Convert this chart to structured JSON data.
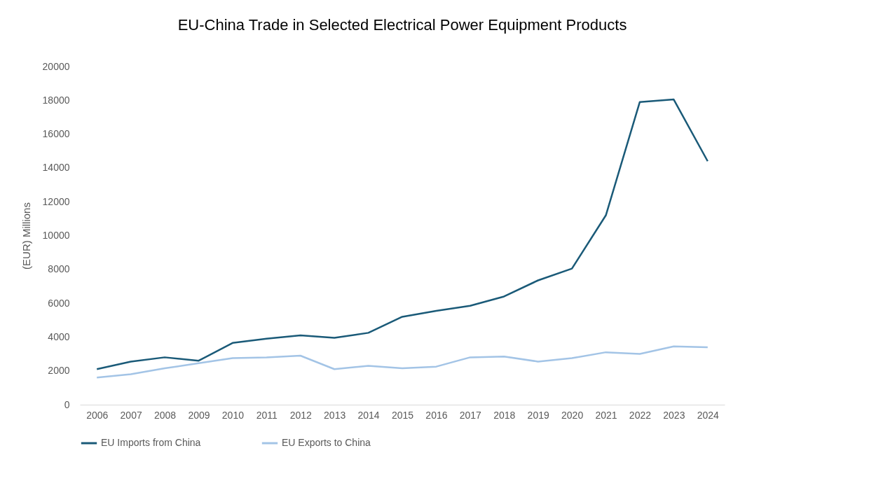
{
  "chart_data": {
    "type": "line",
    "title": "EU-China Trade in Selected Electrical Power Equipment Products",
    "ylabel": "(EUR) Millions",
    "categories": [
      "2006",
      "2007",
      "2008",
      "2009",
      "2010",
      "2011",
      "2012",
      "2013",
      "2014",
      "2015",
      "2016",
      "2017",
      "2018",
      "2019",
      "2020",
      "2021",
      "2022",
      "2023",
      "2024"
    ],
    "series": [
      {
        "name": "EU Imports from China",
        "color": "#1a5a78",
        "values": [
          2100,
          2550,
          2800,
          2600,
          3650,
          3900,
          4100,
          3950,
          4250,
          5200,
          5550,
          5850,
          6400,
          7350,
          8050,
          11200,
          17900,
          18050,
          14400
        ]
      },
      {
        "name": "EU Exports to China",
        "color": "#a3c4e6",
        "values": [
          1600,
          1800,
          2150,
          2450,
          2750,
          2800,
          2900,
          2100,
          2300,
          2150,
          2250,
          2800,
          2850,
          2550,
          2750,
          3100,
          3000,
          3450,
          3400
        ]
      }
    ],
    "ylim": [
      0,
      20000
    ],
    "yticks": [
      0,
      2000,
      4000,
      6000,
      8000,
      10000,
      12000,
      14000,
      16000,
      18000,
      20000
    ],
    "grid": false,
    "legend": "bottom",
    "marker": "none",
    "line_style": "solid"
  }
}
